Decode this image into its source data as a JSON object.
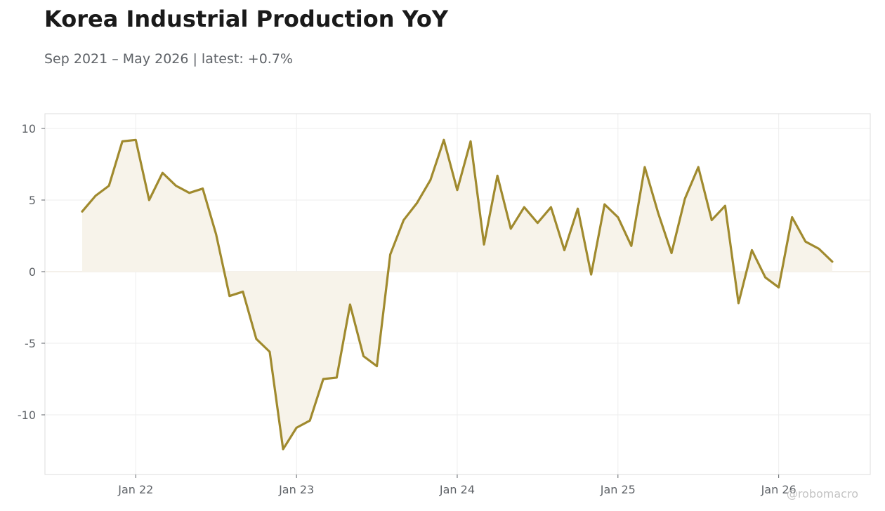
{
  "header": {
    "title": "Korea Industrial Production YoY",
    "subtitle": "Sep 2021 – May 2026 | latest: +0.7%"
  },
  "watermark": "@robomacro",
  "colors": {
    "line": "#a08a2e",
    "fill": "#f7f3ea",
    "grid": "#eeeeee",
    "frame": "#dddddd",
    "zero": "#e8e2d4"
  },
  "chart_data": {
    "type": "area",
    "title": "Korea Industrial Production YoY",
    "xlabel": "",
    "ylabel": "",
    "grid": true,
    "legend": "none",
    "x_start": "2021-09",
    "x_end": "2026-05",
    "x": [
      "2021-09",
      "2021-10",
      "2021-11",
      "2021-12",
      "2022-01",
      "2022-02",
      "2022-03",
      "2022-04",
      "2022-05",
      "2022-06",
      "2022-07",
      "2022-08",
      "2022-09",
      "2022-10",
      "2022-11",
      "2022-12",
      "2023-01",
      "2023-02",
      "2023-03",
      "2023-04",
      "2023-05",
      "2023-06",
      "2023-07",
      "2023-08",
      "2023-09",
      "2023-10",
      "2023-11",
      "2023-12",
      "2024-01",
      "2024-02",
      "2024-03",
      "2024-04",
      "2024-05",
      "2024-06",
      "2024-07",
      "2024-08",
      "2024-09",
      "2024-10",
      "2024-11",
      "2024-12",
      "2025-01",
      "2025-02",
      "2025-03",
      "2025-04",
      "2025-05",
      "2025-06",
      "2025-07",
      "2025-08",
      "2025-09",
      "2025-10",
      "2025-11",
      "2025-12",
      "2026-01",
      "2026-02",
      "2026-03",
      "2026-04",
      "2026-05"
    ],
    "values": [
      4.2,
      5.3,
      6.0,
      9.1,
      9.2,
      5.0,
      6.9,
      6.0,
      5.5,
      5.8,
      2.6,
      -1.7,
      -1.4,
      -4.7,
      -5.6,
      -12.4,
      -10.9,
      -10.4,
      -7.5,
      -7.4,
      -2.3,
      -5.9,
      -6.6,
      1.2,
      3.6,
      4.8,
      6.4,
      9.2,
      5.7,
      9.1,
      1.9,
      6.7,
      3.0,
      4.5,
      3.4,
      4.5,
      1.5,
      4.4,
      -0.2,
      4.7,
      3.8,
      1.8,
      7.3,
      4.1,
      1.3,
      5.1,
      7.3,
      3.6,
      4.6,
      -2.2,
      1.5,
      -0.4,
      -1.1,
      3.8,
      2.1,
      1.6,
      0.7
    ],
    "ylim": [
      -14,
      11
    ],
    "yticks": [
      10,
      5,
      0,
      -5,
      -10
    ],
    "ytick_labels": [
      "10",
      "5",
      "0",
      "-5",
      "-10"
    ],
    "xticks": [
      "2022-01",
      "2023-01",
      "2024-01",
      "2025-01",
      "2026-01"
    ],
    "xtick_labels": [
      "Jan 22",
      "Jan 23",
      "Jan 24",
      "Jan 25",
      "Jan 26"
    ],
    "latest_label": "+0.7%"
  }
}
